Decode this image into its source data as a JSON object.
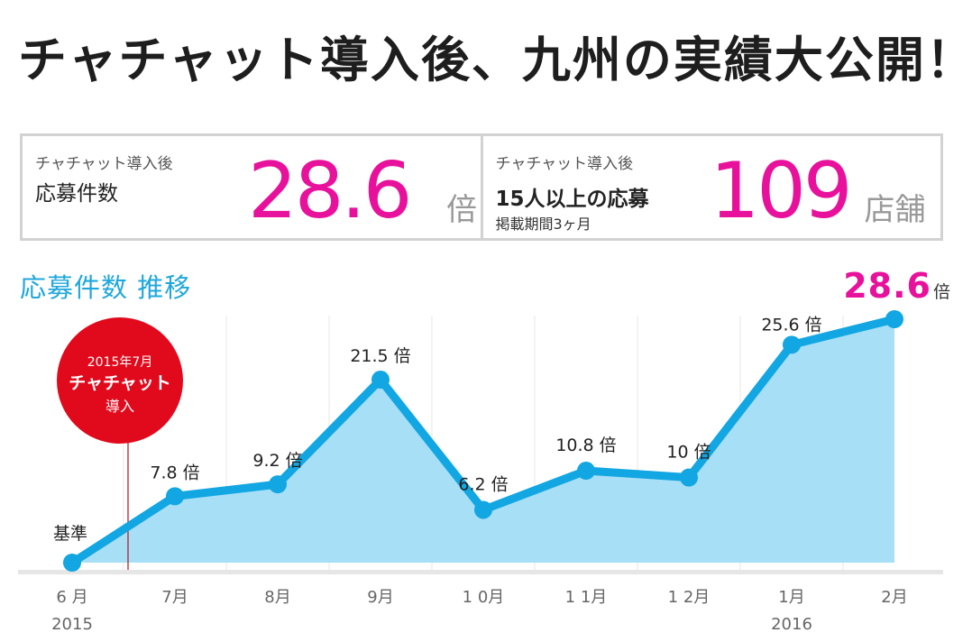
{
  "header": {
    "title": "チャチャット導入後、九州の実績大公開！"
  },
  "stats": [
    {
      "kicker": "チャチャット導入後",
      "label": "応募件数",
      "sub": "",
      "value": "28.6",
      "unit": "倍"
    },
    {
      "kicker": "チャチャット導入後",
      "label": "15人以上の応募",
      "sub": "掲載期間3ヶ月",
      "value": "109",
      "unit": "店舗"
    }
  ],
  "chart_title": "応募件数 推移",
  "final_badge": {
    "value": "28.6",
    "unit": "倍"
  },
  "event_marker": {
    "line1": "2015年7月",
    "line2": "チャチャット",
    "line3": "導入"
  },
  "colors": {
    "accent": "#e8119b",
    "line": "#12a6e2",
    "area": "#a6dff6",
    "marker": "#e10a1c",
    "title": "#1fa7dc"
  },
  "chart_data": {
    "type": "area",
    "title": "応募件数 推移",
    "categories": [
      "6 月",
      "7月",
      "8月",
      "9月",
      "1 0月",
      "1 1月",
      "1 2月",
      "1月",
      "2月"
    ],
    "years": [
      "2015",
      "",
      "",
      "",
      "",
      "",
      "",
      "2016",
      ""
    ],
    "values": [
      0,
      7.8,
      9.2,
      21.5,
      6.2,
      10.8,
      10,
      25.6,
      28.6
    ],
    "point_labels": [
      "基準",
      "7.8 倍",
      "9.2 倍",
      "21.5 倍",
      "6.2 倍",
      "10.8 倍",
      "10 倍",
      "25.6 倍",
      ""
    ],
    "ylim": [
      0,
      28.6
    ],
    "grid": "vertical",
    "series": [
      {
        "values": [
          0,
          7.8,
          9.2,
          21.5,
          6.2,
          10.8,
          10,
          25.6,
          28.6
        ]
      }
    ]
  }
}
